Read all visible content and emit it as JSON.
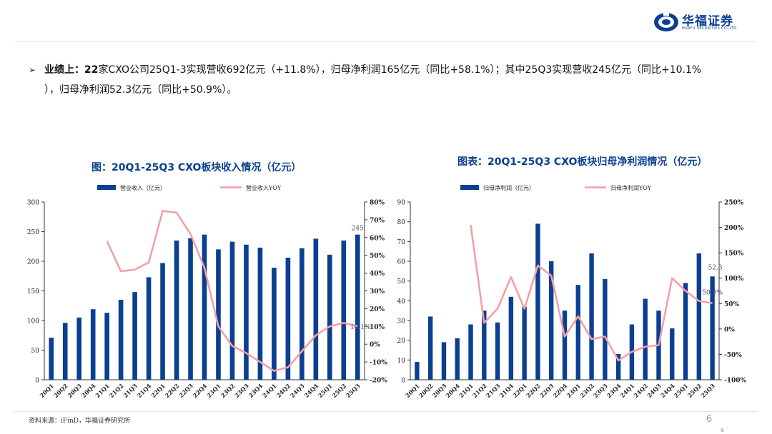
{
  "header": {
    "brand_cn": "华福证券",
    "brand_en": "HUAFU SECURITIES CO.,LTD.",
    "brand_color": "#0b3f91"
  },
  "bullet": {
    "lead": "业绩上：",
    "count": "22",
    "line1_rest": "家CXO公司25Q1-3实现营收692亿元（+11.8%），归母净利润165亿元（同比+58.1%）；其中25Q3实现营收245亿元（同比+10.1%",
    "line2": "），归母净利润52.3亿元（同比+50.9%）。"
  },
  "chart_data": [
    {
      "type": "bar",
      "title": "图：20Q1-25Q3 CXO板块收入情况（亿元）",
      "categories": [
        "20Q1",
        "20Q2",
        "20Q3",
        "20Q4",
        "21Q1",
        "21Q2",
        "21Q3",
        "21Q4",
        "22Q1",
        "22Q2",
        "22Q3",
        "22Q4",
        "23Q1",
        "23Q2",
        "23Q3",
        "23Q4",
        "24Q1",
        "24Q2",
        "24Q3",
        "24Q4",
        "25Q1",
        "25Q2",
        "25Q3"
      ],
      "series": [
        {
          "name": "营业收入（亿元）",
          "type": "bar",
          "axis": "left",
          "color": "#0b3f91",
          "values": [
            71,
            96,
            105,
            119,
            113,
            135,
            148,
            173,
            197,
            235,
            239,
            245,
            220,
            233,
            228,
            223,
            189,
            206,
            222,
            238,
            211,
            235,
            245
          ]
        },
        {
          "name": "营业收入YOY",
          "type": "line",
          "axis": "right",
          "color": "#f4a0a6",
          "values": [
            null,
            null,
            null,
            null,
            58,
            41,
            42,
            46,
            75,
            74,
            62,
            43,
            10,
            -1,
            -5,
            -10,
            -15,
            -13,
            -4,
            5,
            10,
            12,
            10.1
          ]
        }
      ],
      "ylim": [
        0,
        300
      ],
      "yticks": [
        0,
        50,
        100,
        150,
        200,
        250,
        300
      ],
      "y2lim": [
        -20,
        80
      ],
      "y2ticks": [
        "-20%",
        "-10%",
        "0%",
        "10%",
        "20%",
        "30%",
        "40%",
        "50%",
        "60%",
        "70%",
        "80%"
      ],
      "annotations": [
        "245",
        "10.1%"
      ],
      "legend": "top"
    },
    {
      "type": "bar",
      "title": "图表：20Q1-25Q3 CXO板块归母净利润情况（亿元）",
      "categories": [
        "20Q1",
        "20Q2",
        "20Q3",
        "20Q4",
        "21Q1",
        "21Q2",
        "21Q3",
        "21Q4",
        "22Q1",
        "22Q2",
        "22Q3",
        "22Q4",
        "23Q1",
        "23Q2",
        "23Q3",
        "23Q4",
        "24Q1",
        "24Q2",
        "24Q3",
        "24Q4",
        "25Q1",
        "25Q2",
        "25Q3"
      ],
      "series": [
        {
          "name": "归母净利润（亿元）",
          "type": "bar",
          "axis": "left",
          "color": "#0b3f91",
          "values": [
            9,
            32,
            19,
            21,
            28,
            35,
            29,
            42,
            37,
            79,
            60,
            35,
            48,
            64,
            51,
            13,
            28,
            41,
            35,
            26,
            49,
            64,
            52.3
          ]
        },
        {
          "name": "归母净利润YOY",
          "type": "line",
          "axis": "right",
          "color": "#f4a0a6",
          "values": [
            null,
            null,
            null,
            null,
            205,
            12,
            40,
            102,
            40,
            125,
            105,
            -15,
            25,
            -20,
            -15,
            -62,
            -45,
            -35,
            -32,
            100,
            75,
            55,
            50.9
          ]
        }
      ],
      "ylim": [
        0,
        90
      ],
      "yticks": [
        0,
        10,
        20,
        30,
        40,
        50,
        60,
        70,
        80,
        90
      ],
      "y2lim": [
        -100,
        250
      ],
      "y2ticks": [
        "-100%",
        "-50%",
        "0%",
        "50%",
        "100%",
        "150%",
        "200%",
        "250%"
      ],
      "annotations": [
        "52.3",
        "50.9%"
      ],
      "legend": "top"
    }
  ],
  "footer": {
    "source": "资料来源：iFinD，华福证券研究所",
    "page": "6",
    "page_small": "6"
  }
}
